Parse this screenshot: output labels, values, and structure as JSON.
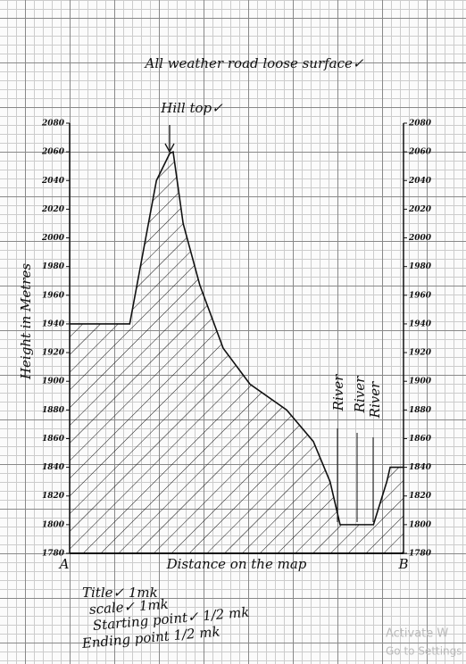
{
  "chart_data": {
    "type": "area",
    "title": "All weather road loose surface✓",
    "y_label": "Height in Metres",
    "x_label": "Distance on the map",
    "start_label": "A",
    "end_label": "B",
    "peak_label": "Hill top✓",
    "river_labels": [
      "River",
      "River",
      "River"
    ],
    "marking_notes": [
      "Title✓ 1mk",
      "scale✓ 1mk",
      "Starting point✓ 1/2 mk",
      "Ending point 1/2 mk"
    ],
    "watermark": [
      "Activate W",
      "Go to Settings"
    ],
    "x": [
      0,
      18,
      22,
      26,
      30,
      31,
      34,
      39,
      46,
      54,
      65,
      73,
      78,
      81,
      91,
      95,
      96,
      100
    ],
    "series": [
      {
        "name": "Height",
        "color": "#111111",
        "values": [
          1940,
          1940,
          1990,
          2040,
          2059,
          2060,
          2010,
          1967,
          1923,
          1898,
          1880,
          1858,
          1830,
          1800,
          1800,
          1830,
          1840,
          1840
        ]
      }
    ],
    "xlim": [
      0,
      100
    ],
    "ylim": [
      1780,
      2080
    ],
    "yticks": [
      1780,
      1800,
      1820,
      1840,
      1860,
      1880,
      1900,
      1920,
      1940,
      1960,
      1980,
      2000,
      2020,
      2040,
      2060,
      2080
    ],
    "hatch": true
  }
}
